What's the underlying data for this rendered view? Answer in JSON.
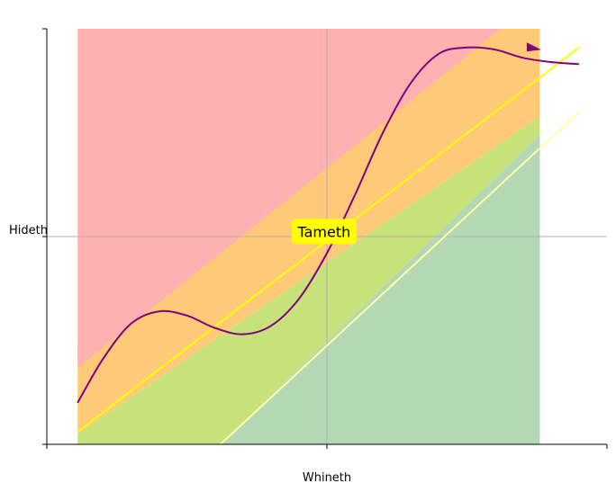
{
  "chart_data": {
    "type": "area",
    "title": "",
    "xlabel": "Whineth",
    "ylabel": "Hideth",
    "xlim": [
      0,
      1
    ],
    "ylim": [
      0,
      1
    ],
    "grid": true,
    "bands": [
      {
        "color": "#ffb0b0",
        "lower": [
          [
            0.055,
            0.185
          ],
          [
            0.88,
            1.0
          ]
        ],
        "upper": [
          [
            0.055,
            1.0
          ],
          [
            0.88,
            1.0
          ]
        ]
      },
      {
        "color": "#ffc97a",
        "lower": [
          [
            0.055,
            0.025
          ],
          [
            0.88,
            0.79
          ]
        ],
        "upper": [
          [
            0.055,
            0.185
          ],
          [
            0.81,
            1.0
          ],
          [
            0.88,
            1.0
          ]
        ]
      },
      {
        "color": "#c8e27b",
        "lower": [
          [
            0.055,
            0.0
          ],
          [
            0.31,
            0.0
          ],
          [
            0.88,
            0.745
          ]
        ],
        "upper": [
          [
            0.055,
            0.025
          ],
          [
            0.88,
            0.79
          ]
        ]
      },
      {
        "color": "#b4d8b4",
        "lower": [
          [
            0.31,
            0.0
          ],
          [
            0.88,
            0.0
          ]
        ],
        "upper": [
          [
            0.31,
            0.0
          ],
          [
            0.88,
            0.745
          ]
        ]
      }
    ],
    "series": [
      {
        "color": "#ffff00",
        "style": "line",
        "x": [
          0.055,
          0.95
        ],
        "y": [
          0.03,
          0.955
        ]
      },
      {
        "color": "#ffffa8",
        "style": "line",
        "x": [
          0.31,
          0.95
        ],
        "y": [
          0.0,
          0.8
        ]
      },
      {
        "color": "#800080",
        "style": "curve",
        "x": [
          0.055,
          0.1,
          0.15,
          0.2,
          0.25,
          0.3,
          0.35,
          0.4,
          0.45,
          0.5,
          0.55,
          0.6,
          0.65,
          0.7,
          0.75,
          0.8,
          0.85,
          0.9,
          0.95
        ],
        "y": [
          0.1,
          0.205,
          0.29,
          0.32,
          0.31,
          0.28,
          0.265,
          0.285,
          0.35,
          0.46,
          0.6,
          0.75,
          0.87,
          0.94,
          0.955,
          0.95,
          0.93,
          0.92,
          0.915
        ]
      }
    ],
    "arrow": {
      "color": "#800080",
      "at_x": 0.86
    },
    "annotations": [
      {
        "text": "Tameth",
        "x": 0.495,
        "y": 0.51,
        "background": "#ffff00"
      }
    ]
  }
}
